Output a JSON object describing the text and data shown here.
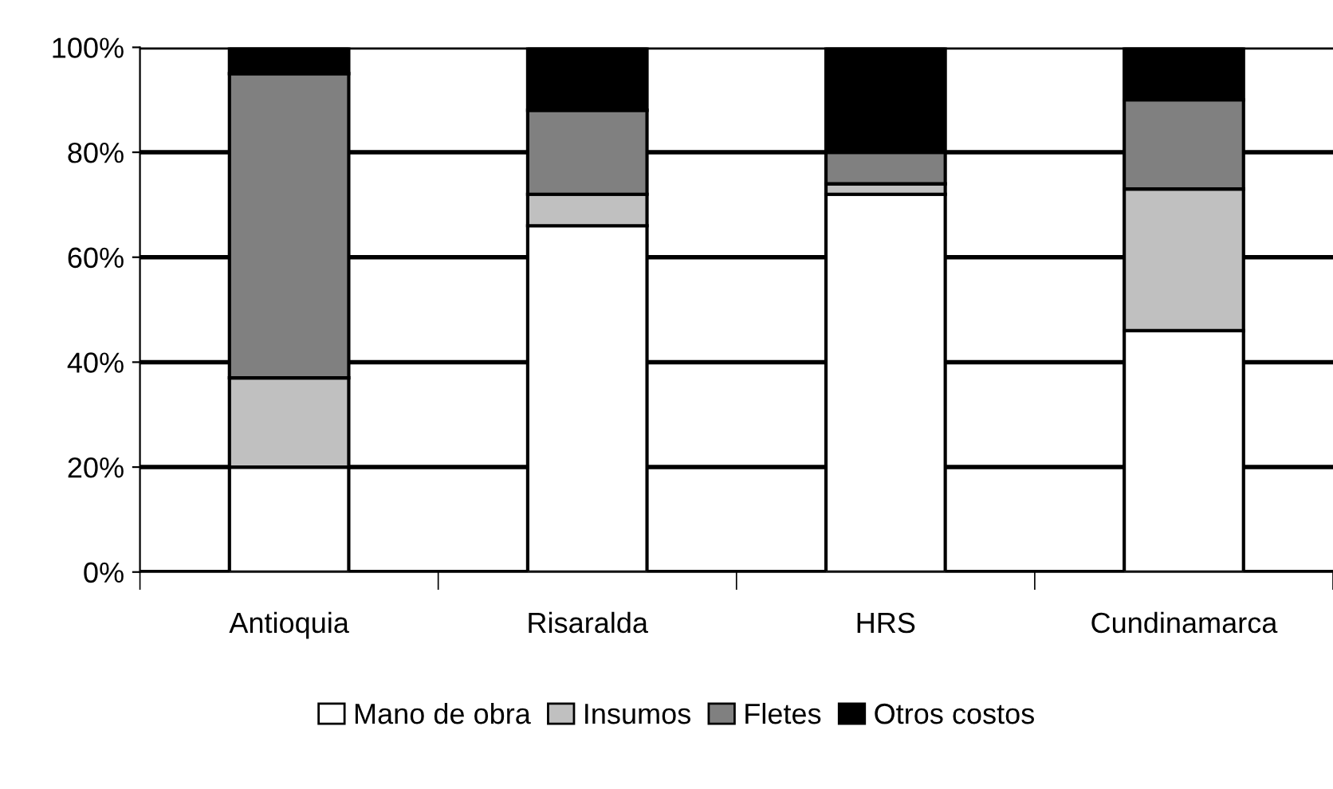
{
  "chart_data": {
    "type": "bar",
    "stacked": true,
    "categories": [
      "Antioquia",
      "Risaralda",
      "HRS",
      "Cundinamarca"
    ],
    "series": [
      {
        "name": "Mano de obra",
        "color": "#ffffff",
        "values": [
          20,
          66,
          72,
          46
        ]
      },
      {
        "name": "Insumos",
        "color": "#c0c0c0",
        "values": [
          17,
          6,
          2,
          27
        ]
      },
      {
        "name": "Fletes",
        "color": "#808080",
        "values": [
          58,
          16,
          6,
          17
        ]
      },
      {
        "name": "Otros costos",
        "color": "#000000",
        "values": [
          5,
          12,
          20,
          10
        ]
      }
    ],
    "ylim": [
      0,
      100
    ],
    "yticks": [
      {
        "value": 0,
        "label": "0%"
      },
      {
        "value": 20,
        "label": "20%"
      },
      {
        "value": 40,
        "label": "40%"
      },
      {
        "value": 60,
        "label": "60%"
      },
      {
        "value": 80,
        "label": "80%"
      },
      {
        "value": 100,
        "label": "100%"
      }
    ],
    "grid": "y",
    "legend": "bottom"
  }
}
